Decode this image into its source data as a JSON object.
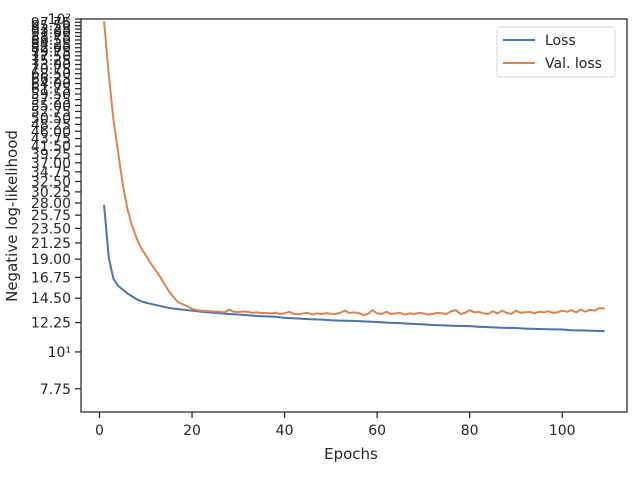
{
  "chart_data": {
    "type": "line",
    "title": "",
    "xlabel": "Epochs",
    "ylabel": "Negative log-likelihood",
    "yscale": "log",
    "xlim": [
      -4,
      114
    ],
    "ylim": [
      6.6,
      100
    ],
    "grid": false,
    "legend": "top-right",
    "x_ticks": [
      0,
      20,
      40,
      60,
      80,
      100
    ],
    "y_ticks": [
      {
        "value": 7.75,
        "label": "7.75"
      },
      {
        "value": 10,
        "label": "10¹"
      },
      {
        "value": 12.25,
        "label": "12.25"
      },
      {
        "value": 14.5,
        "label": "14.50"
      },
      {
        "value": 16.75,
        "label": "16.75"
      },
      {
        "value": 19.0,
        "label": "19.00"
      },
      {
        "value": 21.25,
        "label": "21.25"
      },
      {
        "value": 23.5,
        "label": "23.50"
      },
      {
        "value": 25.75,
        "label": "25.75"
      },
      {
        "value": 28.0,
        "label": "28.00"
      },
      {
        "value": 30.25,
        "label": "30.25"
      },
      {
        "value": 32.5,
        "label": "32.50"
      },
      {
        "value": 34.75,
        "label": "34.75"
      },
      {
        "value": 37.0,
        "label": "37.00"
      },
      {
        "value": 39.25,
        "label": "39.25"
      },
      {
        "value": 41.5,
        "label": "41.50"
      },
      {
        "value": 43.75,
        "label": "43.75"
      },
      {
        "value": 46.0,
        "label": "46.00"
      },
      {
        "value": 48.25,
        "label": "48.25"
      },
      {
        "value": 50.5,
        "label": "50.50"
      },
      {
        "value": 52.75,
        "label": "52.75"
      },
      {
        "value": 55.0,
        "label": "55.00"
      },
      {
        "value": 57.25,
        "label": "57.25"
      },
      {
        "value": 59.5,
        "label": "59.50"
      },
      {
        "value": 61.75,
        "label": "61.75"
      },
      {
        "value": 64.0,
        "label": "64.00"
      },
      {
        "value": 66.25,
        "label": "66.25"
      },
      {
        "value": 68.5,
        "label": "68.50"
      },
      {
        "value": 70.75,
        "label": "70.75"
      },
      {
        "value": 73.0,
        "label": "73.00"
      },
      {
        "value": 75.25,
        "label": "75.25"
      },
      {
        "value": 77.5,
        "label": "77.50"
      },
      {
        "value": 79.75,
        "label": "79.75"
      },
      {
        "value": 82.0,
        "label": "82.00"
      },
      {
        "value": 84.25,
        "label": "84.25"
      },
      {
        "value": 86.5,
        "label": "86.50"
      },
      {
        "value": 88.75,
        "label": "88.75"
      },
      {
        "value": 91.0,
        "label": "91.00"
      },
      {
        "value": 93.25,
        "label": "93.25"
      },
      {
        "value": 95.5,
        "label": "95.50"
      },
      {
        "value": 97.75,
        "label": "97.75"
      },
      {
        "value": 100,
        "label": "10²"
      }
    ],
    "series": [
      {
        "name": "Loss",
        "color": "#4c72b0",
        "x": [
          1,
          2,
          3,
          4,
          5,
          6,
          7,
          8,
          9,
          10,
          12,
          14,
          15,
          17,
          20,
          22,
          25,
          28,
          30,
          33,
          35,
          38,
          40,
          43,
          45,
          48,
          50,
          52,
          55,
          57,
          60,
          62,
          65,
          67,
          70,
          72,
          75,
          77,
          80,
          82,
          85,
          87,
          90,
          92,
          95,
          97,
          100,
          102,
          105,
          107,
          109
        ],
        "y": [
          27.5,
          19.2,
          16.6,
          15.8,
          15.4,
          15.0,
          14.7,
          14.4,
          14.2,
          14.05,
          13.85,
          13.65,
          13.55,
          13.45,
          13.3,
          13.2,
          13.1,
          13.0,
          12.95,
          12.85,
          12.8,
          12.75,
          12.65,
          12.6,
          12.55,
          12.5,
          12.45,
          12.42,
          12.4,
          12.35,
          12.3,
          12.25,
          12.2,
          12.15,
          12.1,
          12.05,
          12.0,
          11.97,
          11.95,
          11.9,
          11.85,
          11.82,
          11.8,
          11.75,
          11.72,
          11.7,
          11.68,
          11.62,
          11.6,
          11.57,
          11.55
        ]
      },
      {
        "name": "Val. loss",
        "color": "#dd8452",
        "x": [
          1,
          2,
          3,
          4,
          5,
          6,
          7,
          8,
          9,
          10,
          11,
          12,
          13,
          14,
          15,
          16,
          17,
          18,
          19,
          20,
          21,
          22,
          23,
          24,
          25,
          26,
          27,
          28,
          29,
          30,
          31,
          32,
          33,
          34,
          35,
          36,
          37,
          38,
          39,
          40,
          41,
          42,
          43,
          44,
          45,
          46,
          47,
          48,
          49,
          50,
          51,
          52,
          53,
          54,
          55,
          56,
          57,
          58,
          59,
          60,
          61,
          62,
          63,
          64,
          65,
          66,
          67,
          68,
          69,
          70,
          71,
          72,
          73,
          74,
          75,
          76,
          77,
          78,
          79,
          80,
          81,
          82,
          83,
          84,
          85,
          86,
          87,
          88,
          89,
          90,
          91,
          92,
          93,
          94,
          95,
          96,
          97,
          98,
          99,
          100,
          101,
          102,
          103,
          104,
          105,
          106,
          107,
          108,
          109
        ],
        "y": [
          98,
          68,
          50,
          40,
          32,
          27,
          24,
          22,
          20.5,
          19.5,
          18.5,
          17.7,
          16.9,
          16.0,
          15.2,
          14.6,
          14.1,
          13.9,
          13.7,
          13.5,
          13.35,
          13.3,
          13.28,
          13.25,
          13.22,
          13.2,
          13.15,
          13.4,
          13.2,
          13.18,
          13.22,
          13.2,
          13.1,
          13.15,
          13.08,
          13.1,
          13.05,
          13.12,
          13.0,
          13.05,
          13.2,
          13.0,
          12.98,
          13.05,
          13.1,
          12.95,
          13.05,
          13.0,
          13.08,
          13.02,
          13.0,
          13.1,
          13.3,
          13.1,
          13.15,
          13.08,
          12.9,
          13.0,
          13.35,
          13.05,
          13.0,
          13.2,
          13.0,
          13.05,
          13.1,
          12.95,
          13.05,
          13.0,
          13.1,
          13.05,
          12.95,
          13.0,
          13.1,
          13.05,
          13.0,
          13.25,
          13.35,
          13.0,
          13.1,
          13.35,
          13.15,
          13.2,
          13.05,
          13.0,
          13.25,
          13.05,
          13.3,
          13.1,
          13.0,
          13.3,
          13.1,
          13.15,
          13.2,
          13.05,
          13.2,
          13.15,
          13.25,
          13.1,
          13.15,
          13.3,
          13.2,
          13.35,
          13.15,
          13.4,
          13.2,
          13.4,
          13.3,
          13.55,
          13.5
        ]
      }
    ]
  }
}
